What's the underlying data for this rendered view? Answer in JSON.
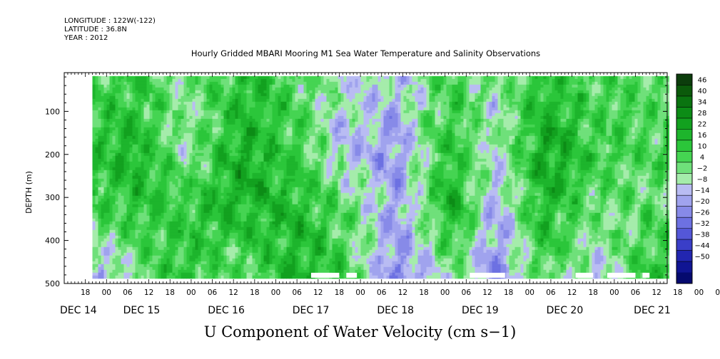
{
  "header": {
    "longitude": "LONGITUDE : 122W(-122)",
    "latitude": "LATITUDE : 36.8N",
    "year": "YEAR : 2012"
  },
  "chart_data": {
    "type": "heatmap",
    "title": "Hourly Gridded MBARI Mooring M1 Sea Water Temperature and Salinity Observations",
    "variable_label": "U Component of Water Velocity (cm s−1)",
    "ylabel": "DEPTH (m)",
    "yaxis": {
      "range": [
        500,
        10
      ],
      "reversed": true,
      "ticks": [
        100,
        200,
        300,
        400,
        500
      ]
    },
    "xaxis": {
      "range_hours": [
        0,
        171
      ],
      "hour_ticks": [
        "18",
        "00",
        "06",
        "12",
        "18",
        "00",
        "06",
        "12",
        "18",
        "00",
        "06",
        "12",
        "18",
        "00",
        "06",
        "12",
        "18",
        "00",
        "06",
        "12",
        "18",
        "00",
        "06",
        "12",
        "18",
        "00",
        "06",
        "12",
        "18",
        "00",
        "06",
        "12"
      ],
      "day_labels": [
        "DEC 14",
        "DEC 15",
        "DEC 16",
        "DEC 17",
        "DEC 18",
        "DEC 19",
        "DEC 20",
        "DEC 21"
      ]
    },
    "data_extent": {
      "depth_range": [
        18,
        485
      ],
      "time_range_hours": [
        8,
        171
      ]
    },
    "colorbar": {
      "levels": [
        46,
        40,
        34,
        28,
        22,
        16,
        10,
        4,
        -2,
        -8,
        -14,
        -20,
        -26,
        -32,
        -38,
        -44,
        -50
      ],
      "colors_high_to_low": [
        "#0c3d0c",
        "#0b5a0b",
        "#0a7410",
        "#0c8c16",
        "#12a11f",
        "#1db52c",
        "#2bc63a",
        "#45d452",
        "#6fe07a",
        "#a5ecab",
        "#b9bcf3",
        "#a0a3ee",
        "#878ae8",
        "#6d71e2",
        "#5457d8",
        "#3a3ec8",
        "#2226b0",
        "#101593",
        "#050a6e"
      ]
    },
    "depth_profile_levels": [
      [
        {
          "hour": 10,
          "depth_200": 14,
          "depth_300": 10,
          "depth_400": -4
        },
        {
          "hour": 20,
          "depth_200": 18,
          "depth_300": 14,
          "depth_400": 6
        },
        {
          "hour": 34,
          "depth_200": -4,
          "depth_300": 10,
          "depth_400": 12
        },
        {
          "hour": 50,
          "depth_200": 22,
          "depth_300": 20,
          "depth_400": 10
        },
        {
          "hour": 65,
          "depth_200": 10,
          "depth_300": 16,
          "depth_400": 18
        },
        {
          "hour": 78,
          "depth_200": -10,
          "depth_300": 4,
          "depth_400": 8
        },
        {
          "hour": 94,
          "depth_200": -18,
          "depth_300": -16,
          "depth_400": -20
        },
        {
          "hour": 110,
          "depth_200": 14,
          "depth_300": 22,
          "depth_400": 10
        },
        {
          "hour": 122,
          "depth_200": -8,
          "depth_300": -14,
          "depth_400": -18
        },
        {
          "hour": 136,
          "depth_200": 24,
          "depth_300": 18,
          "depth_400": 12
        },
        {
          "hour": 150,
          "depth_200": 10,
          "depth_300": 4,
          "depth_400": -4
        },
        {
          "hour": 166,
          "depth_200": 6,
          "depth_300": 2,
          "depth_400": 8
        }
      ]
    ]
  }
}
